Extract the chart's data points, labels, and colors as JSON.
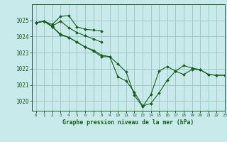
{
  "background_color": "#c8eaea",
  "grid_color": "#a0c8c8",
  "line_color": "#1a5c1a",
  "title": "Graphe pression niveau de la mer (hPa)",
  "xlim": [
    -0.5,
    23
  ],
  "ylim": [
    1019.4,
    1026.0
  ],
  "yticks": [
    1020,
    1021,
    1022,
    1023,
    1024,
    1025
  ],
  "xticks": [
    0,
    1,
    2,
    3,
    4,
    5,
    6,
    7,
    8,
    9,
    10,
    11,
    12,
    13,
    14,
    15,
    16,
    17,
    18,
    19,
    20,
    21,
    22,
    23
  ],
  "series": [
    {
      "x": [
        0,
        1,
        2,
        3,
        4,
        5,
        6,
        7,
        8
      ],
      "y": [
        1024.85,
        1024.95,
        1024.75,
        1025.25,
        1025.3,
        1024.6,
        1024.45,
        1024.4,
        1024.35
      ]
    },
    {
      "x": [
        0,
        1,
        2,
        3,
        4,
        5,
        6,
        7,
        8
      ],
      "y": [
        1024.85,
        1024.95,
        1024.65,
        1024.95,
        1024.55,
        1024.25,
        1024.05,
        1023.85,
        1023.65
      ]
    },
    {
      "x": [
        0,
        1,
        2,
        3,
        4,
        5,
        6,
        7,
        8,
        9,
        10,
        11,
        12,
        13,
        14,
        15,
        16,
        17,
        18,
        19,
        20,
        21,
        22,
        23
      ],
      "y": [
        1024.85,
        1024.95,
        1024.6,
        1024.1,
        1023.95,
        1023.65,
        1023.35,
        1023.15,
        1022.85,
        1022.75,
        1021.5,
        1021.25,
        1020.55,
        1019.7,
        1019.85,
        1020.5,
        1021.3,
        1021.85,
        1022.2,
        1022.05,
        1021.95,
        1021.65,
        1021.6,
        1021.6
      ]
    },
    {
      "x": [
        0,
        1,
        2,
        3,
        4,
        5,
        6,
        7,
        8,
        9,
        10,
        11,
        12,
        13,
        14,
        15,
        16,
        17,
        18,
        19,
        20,
        21,
        22,
        23
      ],
      "y": [
        1024.85,
        1024.95,
        1024.6,
        1024.15,
        1023.95,
        1023.65,
        1023.35,
        1023.1,
        1022.75,
        1022.75,
        1022.3,
        1021.8,
        1020.35,
        1019.65,
        1020.4,
        1021.85,
        1022.15,
        1021.85,
        1021.65,
        1021.95,
        1021.95,
        1021.65,
        1021.6,
        1021.6
      ]
    }
  ]
}
